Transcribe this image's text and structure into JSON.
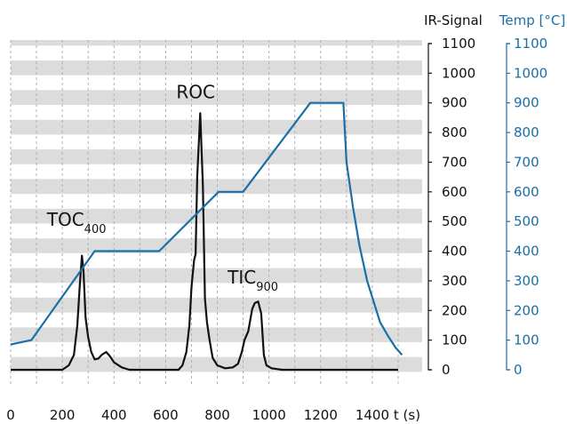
{
  "chart_data": {
    "type": "line",
    "xlabel": "t (s)",
    "x_ticks": [
      "0",
      "200",
      "400",
      "600",
      "800",
      "1000",
      "1200",
      "1400"
    ],
    "xlim": [
      0,
      1500
    ],
    "y_axes": [
      {
        "label": "IR-Signal",
        "color": "#111111",
        "ticks": [
          "0",
          "100",
          "200",
          "300",
          "400",
          "500",
          "600",
          "700",
          "800",
          "900",
          "1000",
          "1100"
        ],
        "ylim": [
          0,
          1100
        ]
      },
      {
        "label": "Temp [°C]",
        "color": "#1a6fa6",
        "ticks": [
          "0",
          "100",
          "200",
          "300",
          "400",
          "500",
          "600",
          "700",
          "800",
          "900",
          "1000",
          "1100"
        ],
        "ylim": [
          0,
          1100
        ]
      }
    ],
    "grid": "horizontal stripes, vertical dashed lines",
    "series": [
      {
        "axis": "IR-Signal",
        "color": "#111111",
        "points": [
          [
            0,
            0
          ],
          [
            200,
            0
          ],
          [
            225,
            15
          ],
          [
            245,
            50
          ],
          [
            258,
            150
          ],
          [
            268,
            290
          ],
          [
            276,
            385
          ],
          [
            282,
            330
          ],
          [
            290,
            175
          ],
          [
            300,
            110
          ],
          [
            312,
            60
          ],
          [
            325,
            35
          ],
          [
            340,
            38
          ],
          [
            352,
            50
          ],
          [
            370,
            60
          ],
          [
            385,
            45
          ],
          [
            400,
            25
          ],
          [
            430,
            8
          ],
          [
            460,
            0
          ],
          [
            650,
            0
          ],
          [
            665,
            15
          ],
          [
            680,
            60
          ],
          [
            692,
            150
          ],
          [
            700,
            280
          ],
          [
            710,
            370
          ],
          [
            716,
            390
          ],
          [
            722,
            650
          ],
          [
            734,
            865
          ],
          [
            744,
            620
          ],
          [
            752,
            240
          ],
          [
            760,
            160
          ],
          [
            770,
            100
          ],
          [
            782,
            40
          ],
          [
            800,
            15
          ],
          [
            830,
            5
          ],
          [
            860,
            8
          ],
          [
            880,
            20
          ],
          [
            895,
            60
          ],
          [
            905,
            100
          ],
          [
            920,
            130
          ],
          [
            935,
            205
          ],
          [
            945,
            225
          ],
          [
            958,
            230
          ],
          [
            970,
            190
          ],
          [
            980,
            50
          ],
          [
            990,
            15
          ],
          [
            1010,
            5
          ],
          [
            1050,
            0
          ],
          [
            1500,
            0
          ]
        ]
      },
      {
        "axis": "Temp [°C]",
        "color": "#1a6fa6",
        "points": [
          [
            0,
            85
          ],
          [
            80,
            100
          ],
          [
            325,
            400
          ],
          [
            575,
            400
          ],
          [
            805,
            600
          ],
          [
            900,
            600
          ],
          [
            1160,
            900
          ],
          [
            1288,
            900
          ],
          [
            1300,
            700
          ],
          [
            1325,
            550
          ],
          [
            1350,
            420
          ],
          [
            1380,
            300
          ],
          [
            1430,
            160
          ],
          [
            1460,
            115
          ],
          [
            1490,
            75
          ],
          [
            1515,
            50
          ]
        ]
      }
    ],
    "annotations": [
      {
        "label": "TOC",
        "sub": "400",
        "x": 255,
        "y": 485
      },
      {
        "label": "ROC",
        "sub": "",
        "x": 716,
        "y": 915
      },
      {
        "label": "TIC",
        "sub": "900",
        "x": 938,
        "y": 290
      }
    ]
  }
}
